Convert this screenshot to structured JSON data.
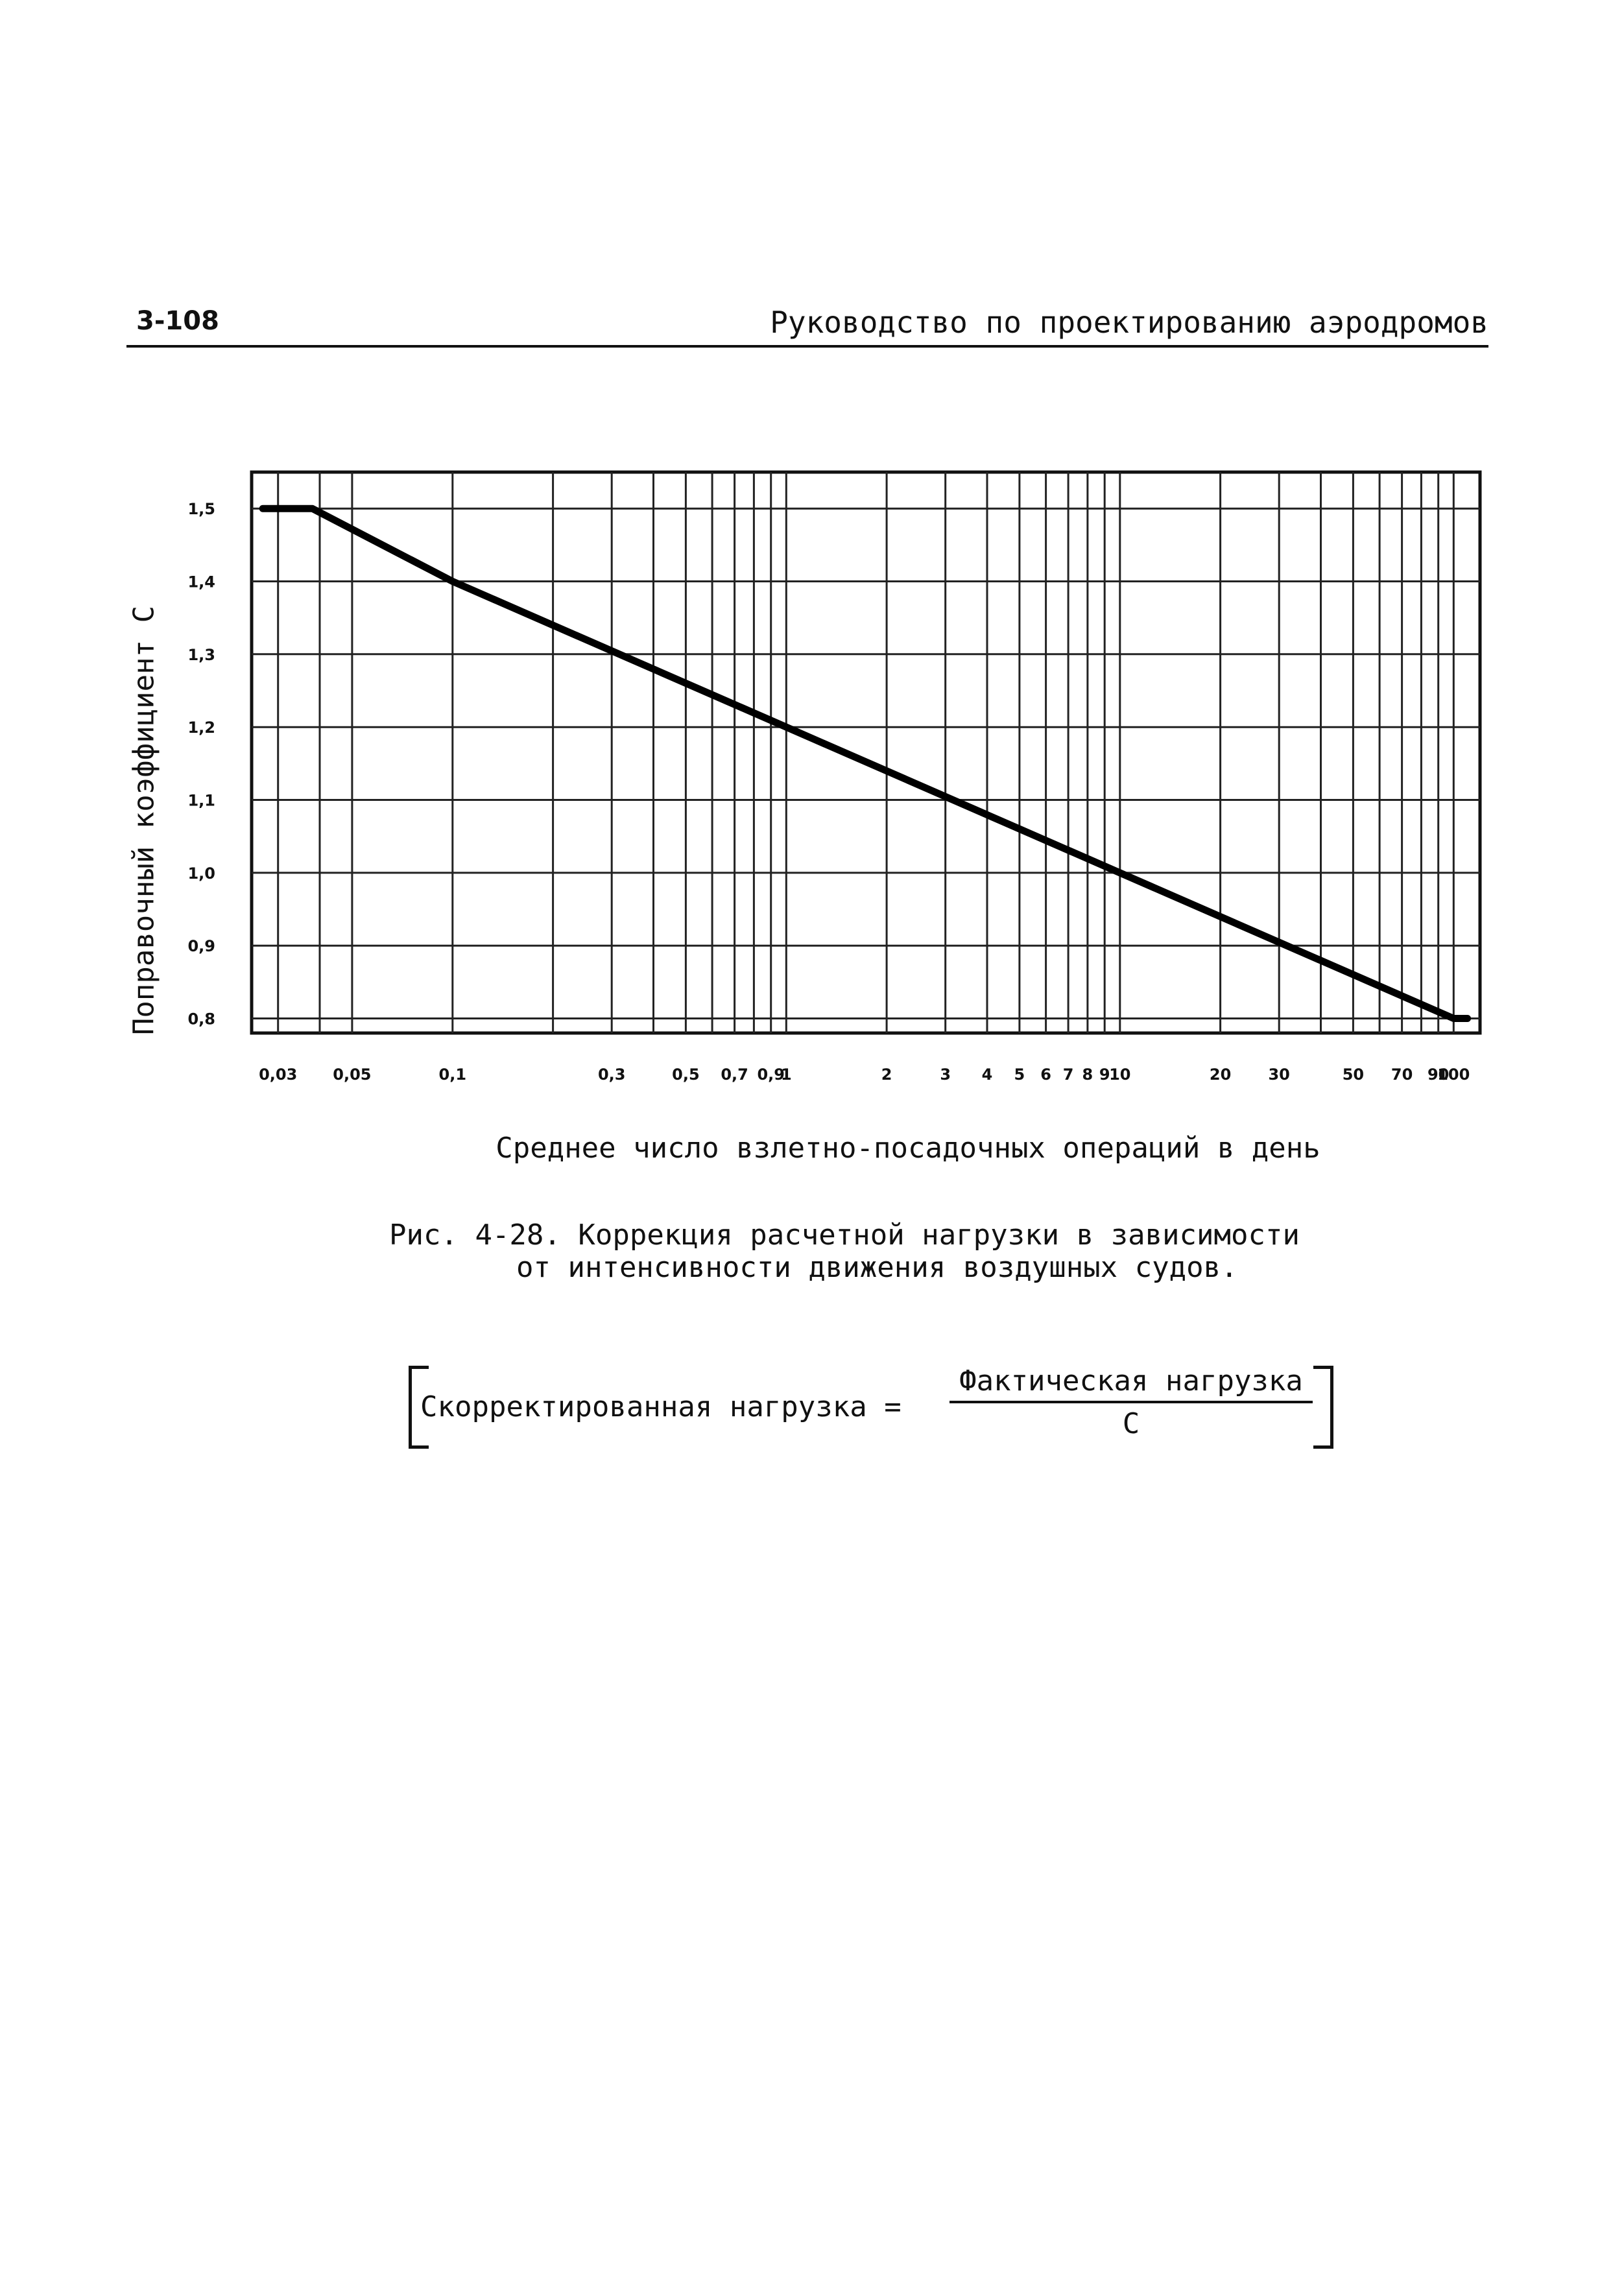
{
  "header": {
    "page_number": "3-108",
    "running_title": "Руководство по проектированию аэродромов"
  },
  "chart_data": {
    "type": "line",
    "x_scale": "log",
    "xlim": [
      0.025,
      120
    ],
    "ylim": [
      0.78,
      1.55
    ],
    "grid": true,
    "xlabel": "Среднее число взлетно-посадочных операций в день",
    "ylabel": "Поправочный коэффициент C",
    "x_ticks": [
      {
        "value": 0.03,
        "label": "0,03"
      },
      {
        "value": 0.05,
        "label": "0,05"
      },
      {
        "value": 0.1,
        "label": "0,1"
      },
      {
        "value": 0.3,
        "label": "0,3"
      },
      {
        "value": 0.5,
        "label": "0,5"
      },
      {
        "value": 0.7,
        "label": "0,7"
      },
      {
        "value": 0.8,
        "label": ""
      },
      {
        "value": 0.9,
        "label": "0,9"
      },
      {
        "value": 1,
        "label": "1"
      },
      {
        "value": 2,
        "label": "2"
      },
      {
        "value": 3,
        "label": "3"
      },
      {
        "value": 4,
        "label": "4"
      },
      {
        "value": 5,
        "label": "5"
      },
      {
        "value": 6,
        "label": "6"
      },
      {
        "value": 7,
        "label": "7"
      },
      {
        "value": 8,
        "label": "8"
      },
      {
        "value": 9,
        "label": "9"
      },
      {
        "value": 10,
        "label": "10"
      },
      {
        "value": 20,
        "label": "20"
      },
      {
        "value": 30,
        "label": "30"
      },
      {
        "value": 50,
        "label": "50"
      },
      {
        "value": 70,
        "label": "70"
      },
      {
        "value": 90,
        "label": "90"
      },
      {
        "value": 100,
        "label": "100"
      }
    ],
    "extra_x_gridlines": [
      0.04,
      0.2,
      0.4,
      0.6,
      40,
      60,
      80
    ],
    "y_ticks": [
      {
        "value": 1.5,
        "label": "1,5"
      },
      {
        "value": 1.4,
        "label": "1,4"
      },
      {
        "value": 1.3,
        "label": "1,3"
      },
      {
        "value": 1.2,
        "label": "1,2"
      },
      {
        "value": 1.1,
        "label": "1,1"
      },
      {
        "value": 1.0,
        "label": "1,0"
      },
      {
        "value": 0.9,
        "label": "0,9"
      },
      {
        "value": 0.8,
        "label": "0,8"
      }
    ],
    "series": [
      {
        "x": [
          0.027,
          0.038,
          0.1,
          1,
          10,
          100,
          110
        ],
        "y": [
          1.5,
          1.5,
          1.4,
          1.2,
          1.0,
          0.8,
          0.8
        ]
      }
    ]
  },
  "caption": {
    "line1": "Рис. 4-28. Коррекция расчетной нагрузки в зависимости",
    "line2": "от интенсивности движения воздушных судов."
  },
  "formula": {
    "left": "Скорректированная нагрузка =",
    "numerator": "Фактическая нагрузка",
    "denominator": "C"
  }
}
